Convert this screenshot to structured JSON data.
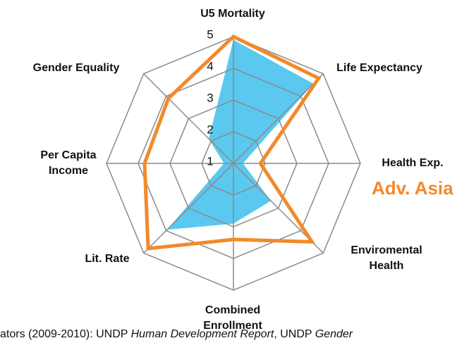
{
  "chart_data": {
    "type": "radar",
    "categories": [
      "U5 Mortality",
      "Life Expectancy",
      "Health Exp.",
      "Enviromental Health",
      "Combined Enrollment",
      "Lit. Rate",
      "Per Capita Income",
      "Gender Equality"
    ],
    "series": [
      {
        "color": "#5bc8f0",
        "fill": true,
        "values": [
          4.9,
          4.56,
          1.3,
          2.67,
          2.9,
          3.96,
          1.3,
          2.1
        ]
      },
      {
        "name": "Adv. Asia",
        "color": "#f28a2a",
        "fill": false,
        "values": [
          5,
          4.8,
          1.85,
          4.5,
          3.4,
          4.8,
          3.8,
          3.9
        ]
      }
    ],
    "ylim": [
      1,
      5
    ],
    "yticks": [
      1,
      2,
      3,
      4,
      5
    ],
    "grid": true,
    "source": [
      "ators (2009-2010): UNDP ",
      "Human Development Report",
      ", UNDP ",
      "Gender"
    ]
  }
}
